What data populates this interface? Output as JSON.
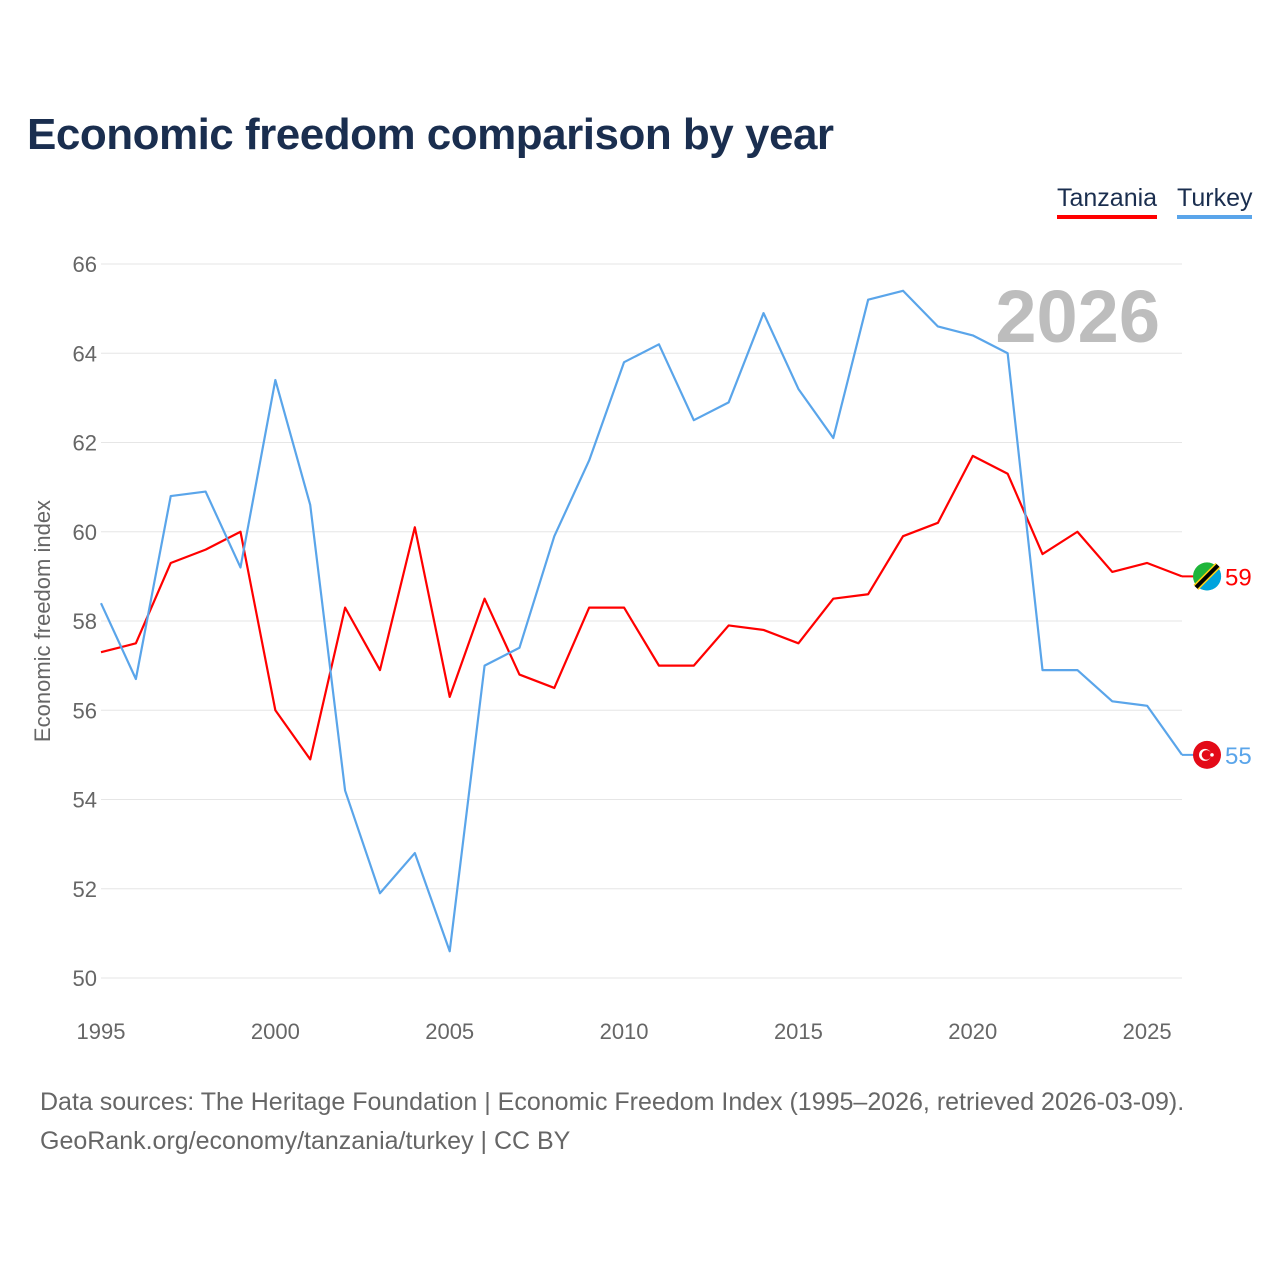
{
  "chart_data": {
    "type": "line",
    "title": "Economic freedom comparison by year",
    "xlabel": "",
    "ylabel": "Economic freedom index",
    "xlim": [
      1995,
      2026
    ],
    "ylim": [
      50,
      66
    ],
    "yticks": [
      "50",
      "52",
      "54",
      "56",
      "58",
      "60",
      "62",
      "64",
      "66"
    ],
    "xticks": [
      "1995",
      "2000",
      "2005",
      "2010",
      "2015",
      "2020",
      "2025"
    ],
    "year_label": "2026",
    "legend_position": "top-right",
    "x": [
      1995,
      1996,
      1997,
      1998,
      1999,
      2000,
      2001,
      2002,
      2003,
      2004,
      2005,
      2006,
      2007,
      2008,
      2009,
      2010,
      2011,
      2012,
      2013,
      2014,
      2015,
      2016,
      2017,
      2018,
      2019,
      2020,
      2021,
      2022,
      2023,
      2024,
      2025,
      2026
    ],
    "series": [
      {
        "name": "Tanzania",
        "color": "#ff0000",
        "end_label": "59",
        "values": [
          57.3,
          57.5,
          59.3,
          59.6,
          60.0,
          56.0,
          54.9,
          58.3,
          56.9,
          60.1,
          56.3,
          58.5,
          56.8,
          56.5,
          58.3,
          58.3,
          57.0,
          57.0,
          57.9,
          57.8,
          57.5,
          58.5,
          58.6,
          59.9,
          60.2,
          61.7,
          61.3,
          59.5,
          60.0,
          59.1,
          59.3,
          59.0
        ]
      },
      {
        "name": "Turkey",
        "color": "#5aa5ea",
        "end_label": "55",
        "values": [
          58.4,
          56.7,
          60.8,
          60.9,
          59.2,
          63.4,
          60.6,
          54.2,
          51.9,
          52.8,
          50.6,
          57.0,
          57.4,
          59.9,
          61.6,
          63.8,
          64.2,
          62.5,
          62.9,
          64.9,
          63.2,
          62.1,
          65.2,
          65.4,
          64.6,
          64.4,
          64.0,
          56.9,
          56.9,
          56.2,
          56.1,
          55.0
        ]
      }
    ]
  },
  "footer": {
    "line1": "Data sources: The Heritage Foundation | Economic Freedom Index (1995–2026, retrieved 2026-03-09).",
    "line2": "GeoRank.org/economy/tanzania/turkey | CC BY"
  }
}
